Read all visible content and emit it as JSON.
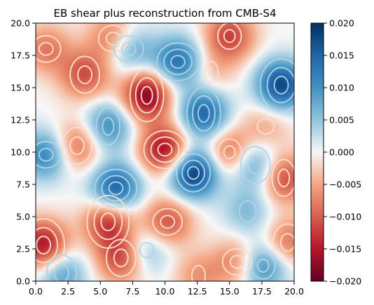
{
  "chart_data": {
    "type": "heatmap",
    "title": "EB shear plus reconstruction from CMB-S4",
    "xlabel": "",
    "ylabel": "",
    "xlim": [
      0,
      20
    ],
    "ylim": [
      0,
      20
    ],
    "x_ticks": [
      "0.0",
      "2.5",
      "5.0",
      "7.5",
      "10.0",
      "12.5",
      "15.0",
      "17.5",
      "20.0"
    ],
    "y_ticks": [
      "0.0",
      "2.5",
      "5.0",
      "7.5",
      "10.0",
      "12.5",
      "15.0",
      "17.5",
      "20.0"
    ],
    "colorbar": {
      "colormap": "RdBu",
      "vmin": -0.02,
      "vmax": 0.02,
      "ticks": [
        "0.020",
        "0.015",
        "0.010",
        "0.005",
        "0.000",
        "−0.005",
        "−0.010",
        "−0.015",
        "−0.020"
      ]
    },
    "overlay": "contour lines",
    "features": [
      {
        "x": 8.6,
        "y": 14.4,
        "value": -0.018
      },
      {
        "x": 10.0,
        "y": 10.2,
        "value": -0.017
      },
      {
        "x": 0.6,
        "y": 2.8,
        "value": -0.016
      },
      {
        "x": 12.2,
        "y": 8.4,
        "value": 0.02
      },
      {
        "x": 19.0,
        "y": 15.2,
        "value": 0.018
      },
      {
        "x": 6.2,
        "y": 7.2,
        "value": 0.016
      },
      {
        "x": 13.0,
        "y": 13.0,
        "value": 0.015
      },
      {
        "x": 11.0,
        "y": 17.0,
        "value": 0.014
      },
      {
        "x": 5.6,
        "y": 4.6,
        "value": -0.013
      },
      {
        "x": 15.0,
        "y": 19.0,
        "value": -0.012
      },
      {
        "x": 3.8,
        "y": 16.0,
        "value": -0.011
      },
      {
        "x": 6.0,
        "y": 18.8,
        "value": -0.01
      },
      {
        "x": 19.2,
        "y": 8.0,
        "value": -0.012
      },
      {
        "x": 10.2,
        "y": 4.6,
        "value": -0.011
      },
      {
        "x": 6.6,
        "y": 1.8,
        "value": -0.012
      },
      {
        "x": 15.0,
        "y": 10.0,
        "value": -0.01
      },
      {
        "x": 3.2,
        "y": 10.5,
        "value": -0.01
      },
      {
        "x": 0.8,
        "y": 9.8,
        "value": 0.012
      },
      {
        "x": 5.6,
        "y": 12.0,
        "value": 0.011
      },
      {
        "x": 7.2,
        "y": 18.0,
        "value": 0.01
      },
      {
        "x": 17.0,
        "y": 9.0,
        "value": 0.01
      },
      {
        "x": 17.6,
        "y": 1.2,
        "value": 0.012
      },
      {
        "x": 2.0,
        "y": 0.6,
        "value": 0.009
      },
      {
        "x": 15.6,
        "y": 1.5,
        "value": -0.008
      },
      {
        "x": 12.6,
        "y": 0.4,
        "value": -0.006
      },
      {
        "x": 0.8,
        "y": 18.0,
        "value": -0.008
      },
      {
        "x": 19.5,
        "y": 3.0,
        "value": -0.009
      },
      {
        "x": 8.6,
        "y": 2.4,
        "value": 0.007
      },
      {
        "x": 16.4,
        "y": 5.4,
        "value": 0.006
      },
      {
        "x": 17.8,
        "y": 12.0,
        "value": -0.005
      },
      {
        "x": 13.6,
        "y": 16.2,
        "value": -0.004
      }
    ]
  }
}
